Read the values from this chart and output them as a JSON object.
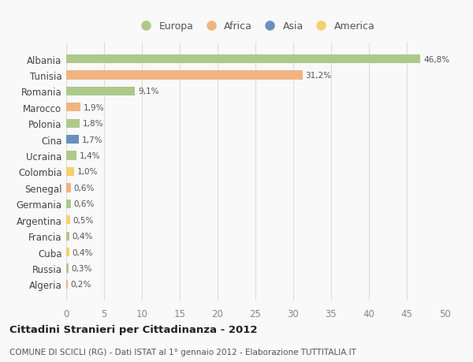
{
  "categories": [
    "Albania",
    "Tunisia",
    "Romania",
    "Marocco",
    "Polonia",
    "Cina",
    "Ucraina",
    "Colombia",
    "Senegal",
    "Germania",
    "Argentina",
    "Francia",
    "Cuba",
    "Russia",
    "Algeria"
  ],
  "values": [
    46.8,
    31.2,
    9.1,
    1.9,
    1.8,
    1.7,
    1.4,
    1.0,
    0.6,
    0.6,
    0.5,
    0.4,
    0.4,
    0.3,
    0.2
  ],
  "labels": [
    "46,8%",
    "31,2%",
    "9,1%",
    "1,9%",
    "1,8%",
    "1,7%",
    "1,4%",
    "1,0%",
    "0,6%",
    "0,6%",
    "0,5%",
    "0,4%",
    "0,4%",
    "0,3%",
    "0,2%"
  ],
  "colors": [
    "#adc98a",
    "#f0b482",
    "#adc98a",
    "#f0b482",
    "#adc98a",
    "#6a8fbe",
    "#adc98a",
    "#f5d06e",
    "#f0b482",
    "#adc98a",
    "#f5d06e",
    "#adc98a",
    "#f5d06e",
    "#adc98a",
    "#f0b482"
  ],
  "legend_labels": [
    "Europa",
    "Africa",
    "Asia",
    "America"
  ],
  "legend_colors": [
    "#adc98a",
    "#f0b482",
    "#6a8fbe",
    "#f5d06e"
  ],
  "xlim": [
    0,
    50
  ],
  "xticks": [
    0,
    5,
    10,
    15,
    20,
    25,
    30,
    35,
    40,
    45,
    50
  ],
  "title": "Cittadini Stranieri per Cittadinanza - 2012",
  "subtitle": "COMUNE DI SCICLI (RG) - Dati ISTAT al 1° gennaio 2012 - Elaborazione TUTTITALIA.IT",
  "background_color": "#f9f9f9",
  "grid_color": "#dddddd",
  "bar_height": 0.55
}
